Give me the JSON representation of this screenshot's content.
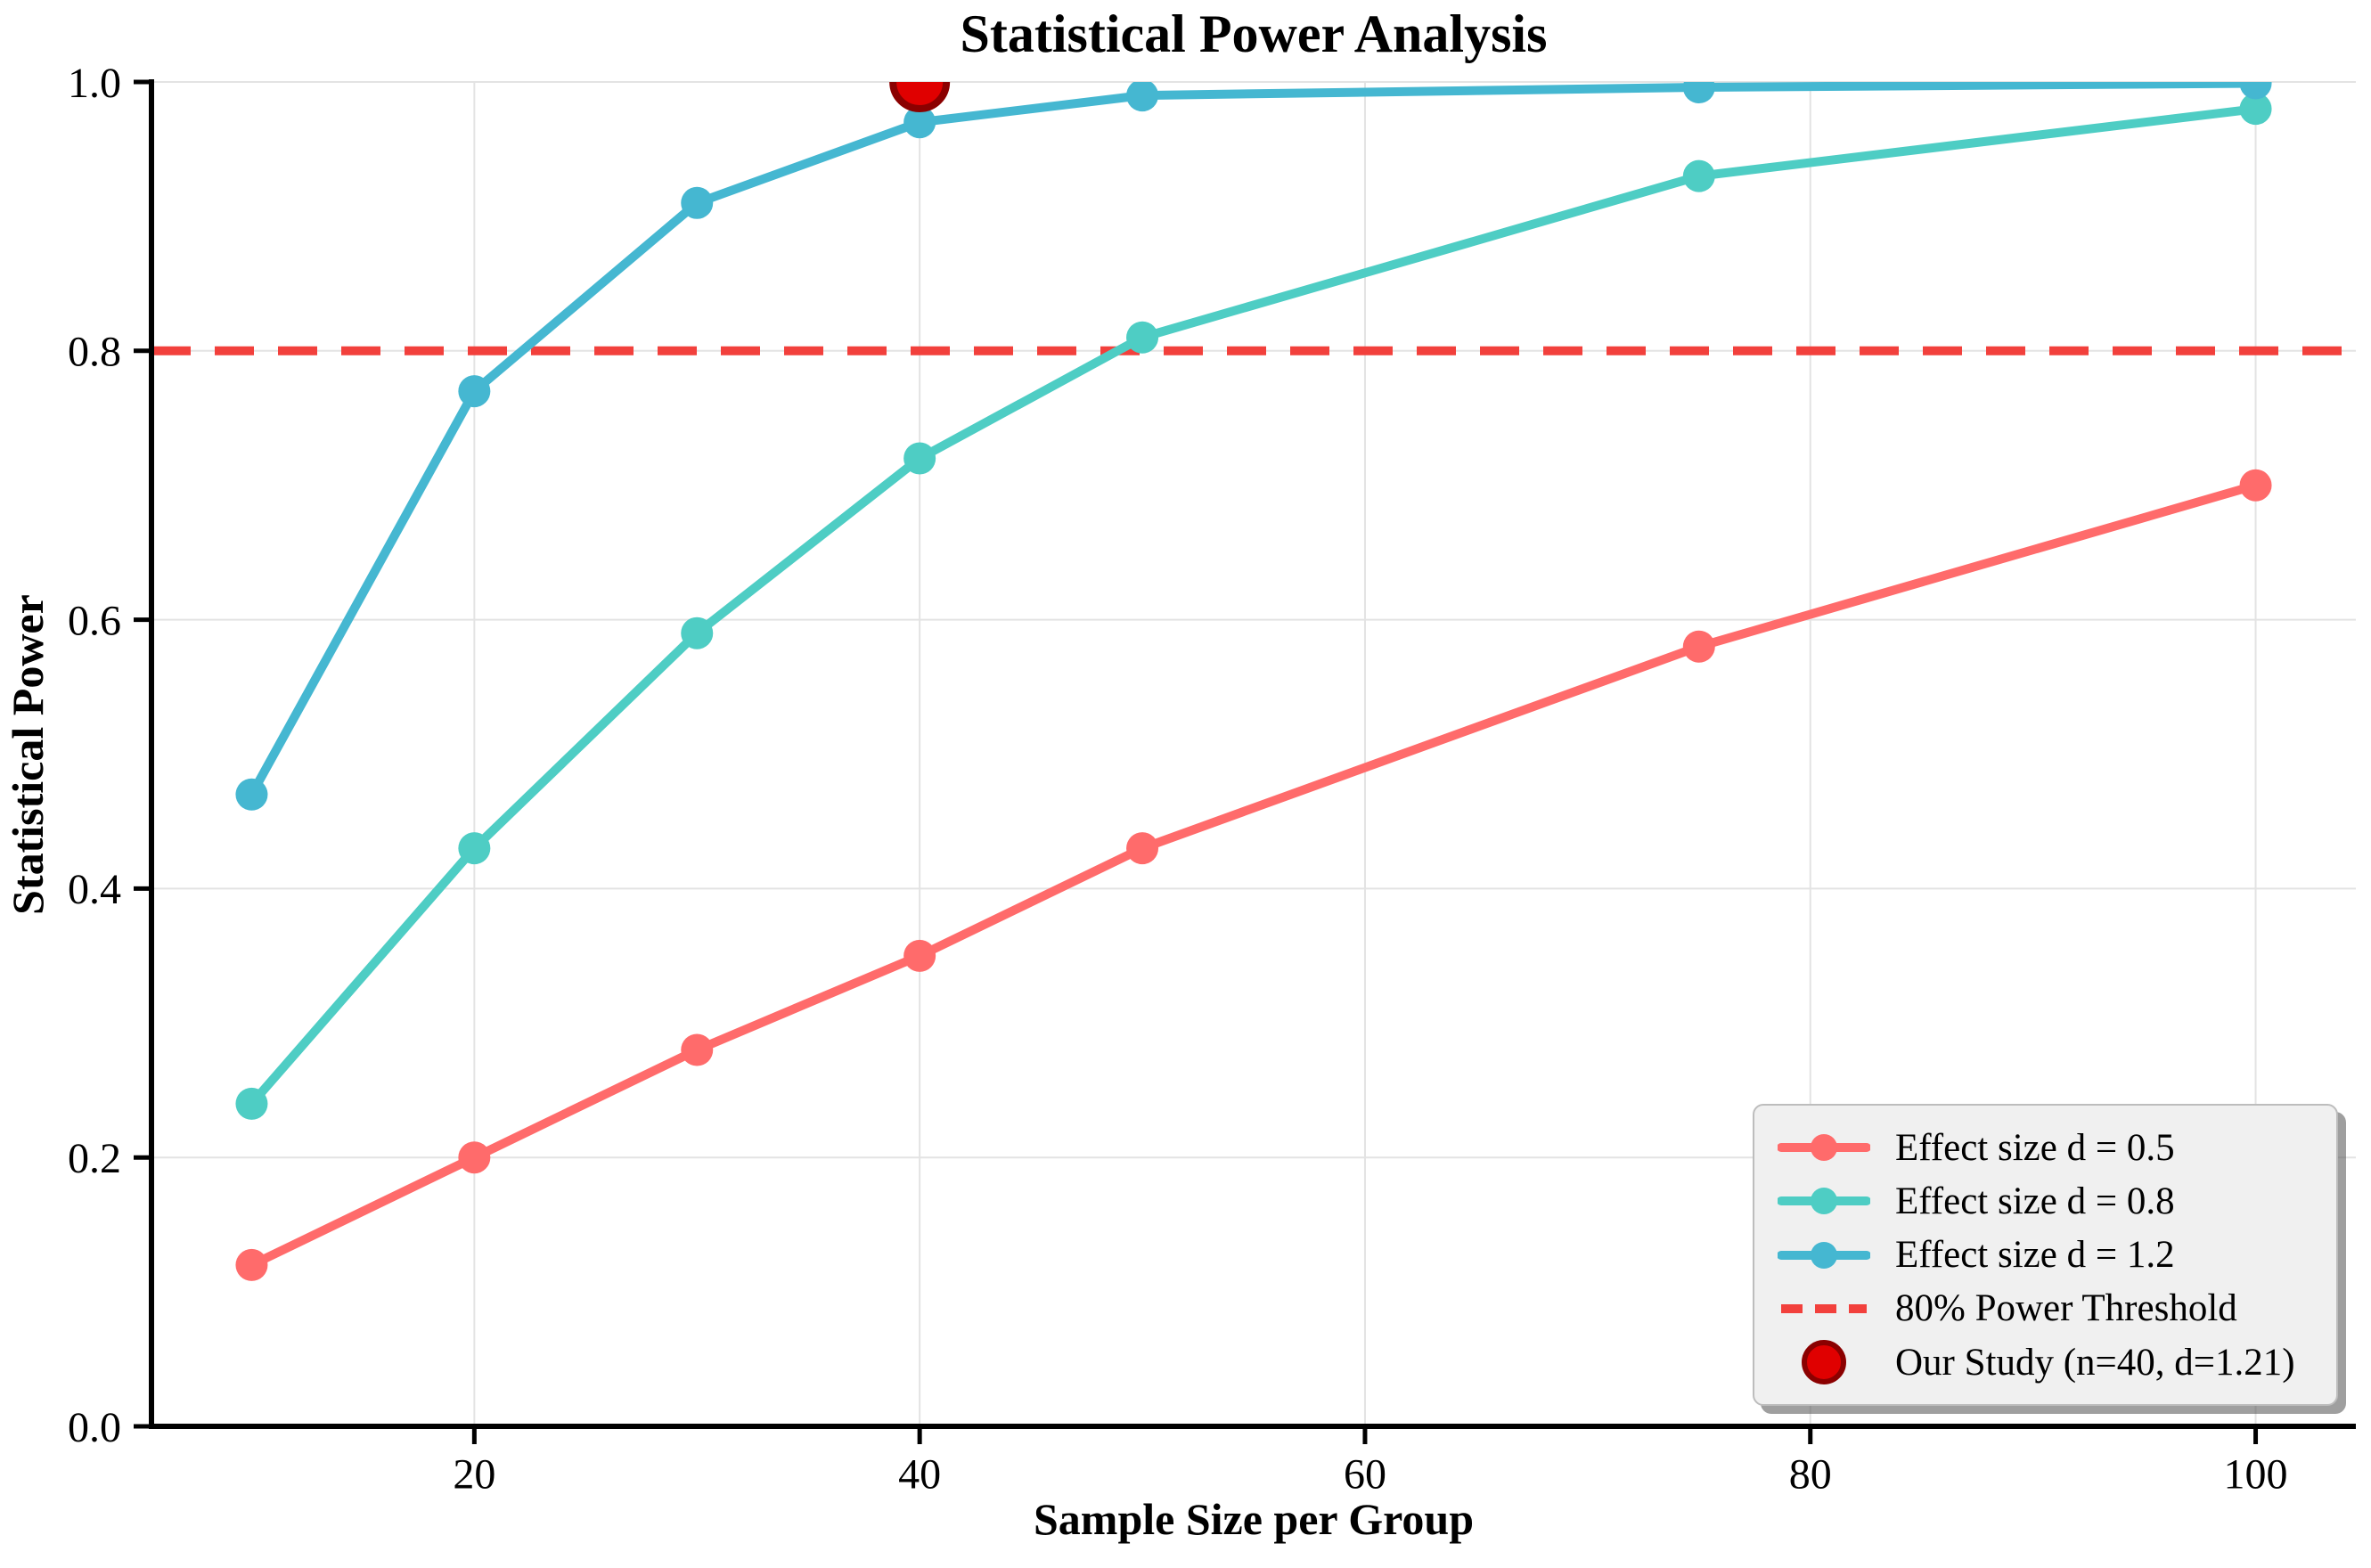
{
  "chart_data": {
    "type": "line",
    "title": "Statistical Power Analysis",
    "xlabel": "Sample Size per Group",
    "ylabel": "Statistical Power",
    "x": [
      10,
      20,
      30,
      40,
      50,
      75,
      100
    ],
    "series": [
      {
        "name": "Effect size d = 0.5",
        "color": "#FF6B6B",
        "marker": "circle",
        "values": [
          0.12,
          0.2,
          0.28,
          0.35,
          0.43,
          0.58,
          0.7
        ]
      },
      {
        "name": "Effect size d = 0.8",
        "color": "#4ECDC4",
        "marker": "circle",
        "values": [
          0.24,
          0.43,
          0.59,
          0.72,
          0.81,
          0.93,
          0.98
        ]
      },
      {
        "name": "Effect size d = 1.2",
        "color": "#45B7D1",
        "marker": "circle",
        "values": [
          0.47,
          0.77,
          0.91,
          0.97,
          0.99,
          0.996,
          0.999
        ]
      }
    ],
    "threshold": {
      "label": "80% Power Threshold",
      "value": 0.8,
      "color": "#F2403C",
      "style": "dashed"
    },
    "study_point": {
      "label": "Our Study (n=40, d=1.21)",
      "x": 40,
      "y": 1.0,
      "fill": "#E00000",
      "edge": "#8B0000"
    },
    "xticks": [
      "20",
      "40",
      "60",
      "80",
      "100"
    ],
    "yticks": [
      "0.0",
      "0.2",
      "0.4",
      "0.6",
      "0.8",
      "1.0"
    ],
    "xlim": [
      5.5,
      104.5
    ],
    "ylim": [
      0.0,
      1.0
    ],
    "grid": true,
    "grid_color": "#e3e3e3",
    "spine_color": "#000000",
    "background": "#ffffff",
    "legend_position": "lower right"
  }
}
